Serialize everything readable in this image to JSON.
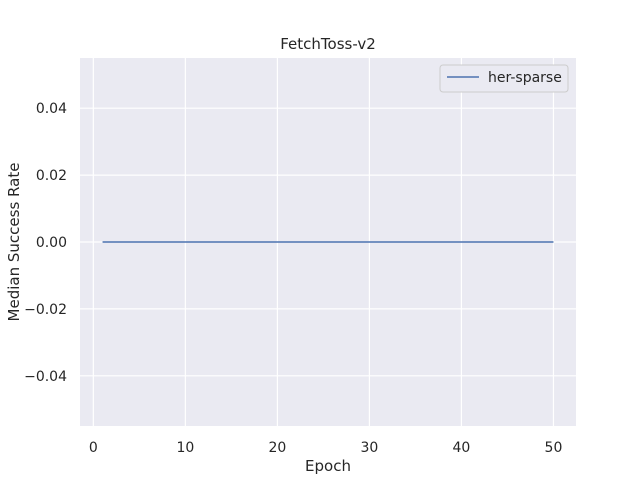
{
  "chart_data": {
    "type": "line",
    "title": "FetchToss-v2",
    "xlabel": "Epoch",
    "ylabel": "Median Success Rate",
    "xlim": [
      -1.45,
      52.45
    ],
    "ylim": [
      -0.055,
      0.055
    ],
    "xticks": [
      0,
      10,
      20,
      30,
      40,
      50
    ],
    "xtick_labels": [
      "0",
      "10",
      "20",
      "30",
      "40",
      "50"
    ],
    "yticks": [
      0.04,
      0.02,
      0.0,
      -0.02,
      -0.04
    ],
    "ytick_labels": [
      "0.04",
      "0.02",
      "0.00",
      "−0.02",
      "−0.04"
    ],
    "grid": true,
    "legend_position": "top-right",
    "background_color": "#eaeaf2",
    "grid_color": "#ffffff",
    "series": [
      {
        "name": "her-sparse",
        "color": "#4c72b0",
        "x": [
          1,
          50
        ],
        "y": [
          0.0,
          0.0
        ]
      }
    ]
  }
}
